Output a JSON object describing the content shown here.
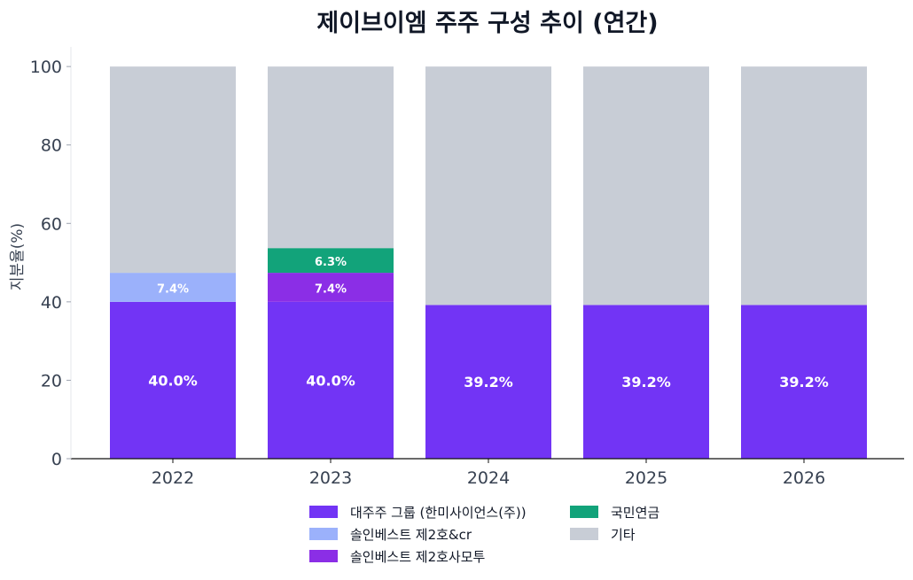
{
  "chart_data": {
    "type": "bar",
    "stacked": true,
    "title": "제이브이엠 주주 구성 추이 (연간)",
    "xlabel": "",
    "ylabel": "지분율(%)",
    "ylim": [
      0,
      105
    ],
    "yticks": [
      0,
      20,
      40,
      60,
      80,
      100
    ],
    "categories": [
      "2022",
      "2023",
      "2024",
      "2025",
      "2026"
    ],
    "grid": false,
    "legend_position": "bottom-center",
    "series": [
      {
        "name": "대주주 그룹 (한미사이언스(주))",
        "color": "#7234f5",
        "values": [
          40.0,
          40.0,
          39.2,
          39.2,
          39.2
        ],
        "labels": [
          "40.0%",
          "40.0%",
          "39.2%",
          "39.2%",
          "39.2%"
        ]
      },
      {
        "name": "솔인베스트 제2호&cr",
        "color": "#9bb1fb",
        "values": [
          7.4,
          0,
          0,
          0,
          0
        ],
        "labels": [
          "7.4%",
          "",
          "",
          "",
          ""
        ]
      },
      {
        "name": "솔인베스트 제2호사모투",
        "color": "#8b2ee6",
        "values": [
          0,
          7.4,
          0,
          0,
          0
        ],
        "labels": [
          "",
          "7.4%",
          "",
          "",
          ""
        ]
      },
      {
        "name": "국민연금",
        "color": "#12a37a",
        "values": [
          0,
          6.3,
          0,
          0,
          0
        ],
        "labels": [
          "",
          "6.3%",
          "",
          "",
          ""
        ]
      },
      {
        "name": "기타",
        "color": "#c8cdd6",
        "values": [
          52.6,
          46.3,
          60.8,
          60.8,
          60.8
        ],
        "labels": [
          "",
          "",
          "",
          "",
          ""
        ]
      }
    ]
  }
}
